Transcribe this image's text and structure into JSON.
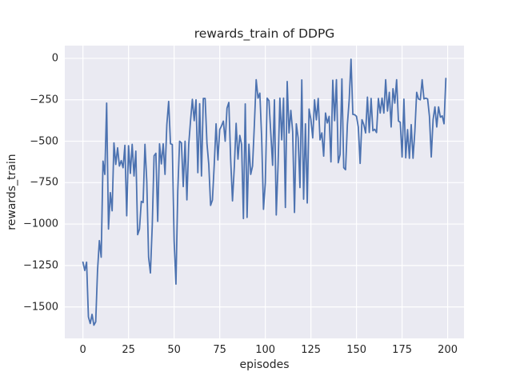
{
  "figure": {
    "background": "#ffffff",
    "axes_background": "#eaeaf2",
    "grid_color": "#ffffff",
    "text_color": "#262626"
  },
  "chart_data": {
    "type": "line",
    "title": "rewards_train of DDPG",
    "xlabel": "episodes",
    "ylabel": "rewards_train",
    "grid": true,
    "legend_position": "none",
    "line_color": "#4c72b0",
    "x_ticks": [
      0,
      25,
      50,
      75,
      100,
      125,
      150,
      175,
      200
    ],
    "y_ticks": [
      0,
      -250,
      -500,
      -750,
      -1000,
      -1250,
      -1500
    ],
    "xlim": [
      -9.95,
      208.95
    ],
    "ylim": [
      -1690,
      77
    ],
    "series": [
      {
        "name": "rewards_train",
        "color": "#4c72b0",
        "x_start": 0,
        "x_step": 1,
        "values": [
          -1230,
          -1280,
          -1230,
          -1560,
          -1600,
          -1545,
          -1610,
          -1590,
          -1280,
          -1100,
          -1200,
          -620,
          -700,
          -270,
          -1030,
          -810,
          -920,
          -510,
          -640,
          -540,
          -650,
          -617,
          -660,
          -525,
          -950,
          -527,
          -694,
          -519,
          -710,
          -560,
          -1064,
          -1030,
          -863,
          -870,
          -519,
          -742,
          -1200,
          -1295,
          -1010,
          -588,
          -573,
          -984,
          -516,
          -637,
          -516,
          -700,
          -400,
          -260,
          -515,
          -520,
          -1100,
          -1362,
          -800,
          -500,
          -510,
          -774,
          -500,
          -854,
          -520,
          -376,
          -247,
          -376,
          -250,
          -690,
          -274,
          -710,
          -242,
          -242,
          -512,
          -640,
          -887,
          -855,
          -640,
          -395,
          -613,
          -430,
          -407,
          -379,
          -500,
          -300,
          -266,
          -610,
          -860,
          -655,
          -392,
          -608,
          -465,
          -520,
          -967,
          -275,
          -960,
          -518,
          -700,
          -650,
          -400,
          -129,
          -240,
          -210,
          -480,
          -911,
          -750,
          -240,
          -255,
          -450,
          -645,
          -250,
          -945,
          -640,
          -240,
          -492,
          -240,
          -900,
          -140,
          -450,
          -314,
          -443,
          -930,
          -395,
          -480,
          -780,
          -130,
          -850,
          -395,
          -873,
          -306,
          -370,
          -480,
          -250,
          -371,
          -242,
          -492,
          -450,
          -590,
          -330,
          -390,
          -350,
          -625,
          -132,
          -376,
          -129,
          -630,
          -580,
          -124,
          -660,
          -672,
          -400,
          -250,
          -5,
          -338,
          -340,
          -350,
          -415,
          -634,
          -370,
          -400,
          -450,
          -234,
          -447,
          -242,
          -437,
          -428,
          -448,
          -242,
          -330,
          -240,
          -330,
          -129,
          -318,
          -205,
          -414,
          -183,
          -270,
          -129,
          -378,
          -386,
          -595,
          -246,
          -600,
          -430,
          -603,
          -400,
          -603,
          -440,
          -205,
          -245,
          -250,
          -129,
          -245,
          -240,
          -245,
          -350,
          -595,
          -370,
          -293,
          -414,
          -293,
          -355,
          -347,
          -395,
          -121
        ]
      }
    ]
  }
}
